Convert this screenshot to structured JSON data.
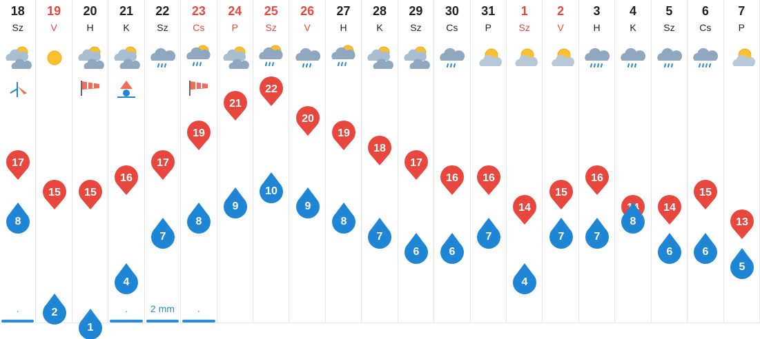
{
  "chart_data": {
    "type": "line",
    "categories": [
      "18",
      "19",
      "20",
      "21",
      "22",
      "23",
      "24",
      "25",
      "26",
      "27",
      "28",
      "29",
      "30",
      "31",
      "1",
      "2",
      "3",
      "4",
      "5",
      "6",
      "7"
    ],
    "day_abbr": [
      "Sz",
      "V",
      "H",
      "K",
      "Sz",
      "Cs",
      "P",
      "Sz",
      "V",
      "H",
      "K",
      "Sz",
      "Cs",
      "P",
      "Sz",
      "V",
      "H",
      "K",
      "Sz",
      "Cs",
      "P"
    ],
    "weekend": [
      false,
      true,
      false,
      false,
      false,
      true,
      true,
      true,
      true,
      false,
      false,
      false,
      false,
      false,
      true,
      true,
      false,
      false,
      false,
      false,
      false
    ],
    "series": [
      {
        "values": [
          17,
          15,
          15,
          16,
          17,
          19,
          21,
          22,
          20,
          19,
          18,
          17,
          16,
          16,
          14,
          15,
          16,
          14,
          14,
          15,
          13
        ],
        "color": "#e8473d"
      },
      {
        "values": [
          8,
          2,
          1,
          4,
          7,
          8,
          9,
          10,
          9,
          8,
          7,
          6,
          6,
          7,
          4,
          7,
          7,
          8,
          6,
          6,
          5
        ],
        "color": "#1f86d6"
      }
    ],
    "precip_labels": [
      ".",
      "",
      "",
      ".",
      "2 mm",
      ".",
      "",
      "",
      "",
      "",
      "",
      "",
      "",
      "",
      "",
      "",
      "",
      "",
      "",
      "",
      ""
    ],
    "precip_bar": [
      true,
      false,
      false,
      true,
      true,
      true,
      false,
      false,
      false,
      false,
      false,
      false,
      false,
      false,
      false,
      false,
      false,
      false,
      false,
      false,
      false
    ],
    "weather_icons": [
      "partly-cloudy-icon",
      "sun-icon",
      "partly-cloudy-icon",
      "partly-cloudy-icon",
      "rain-cloud-icon",
      "rain-partly-cloudy-icon",
      "partly-cloudy-icon",
      "rain-partly-cloudy-icon",
      "rain-cloud-icon",
      "rain-partly-cloudy-icon",
      "partly-cloudy-icon",
      "partly-cloudy-icon",
      "rain-cloud-icon",
      "sun-cloud-icon",
      "sun-cloud-icon",
      "sun-cloud-icon",
      "heavy-rain-cloud-icon",
      "rain-cloud-icon",
      "rain-cloud-icon",
      "heavy-rain-cloud-icon",
      "sun-cloud-icon"
    ],
    "wind_icons": [
      "wind-vane-icon",
      "",
      "windsock-icon",
      "wind-tower-icon",
      "",
      "windsock-icon",
      "",
      "",
      "",
      "",
      "",
      "",
      "",
      "",
      "",
      "",
      "",
      "",
      "",
      "",
      ""
    ]
  }
}
